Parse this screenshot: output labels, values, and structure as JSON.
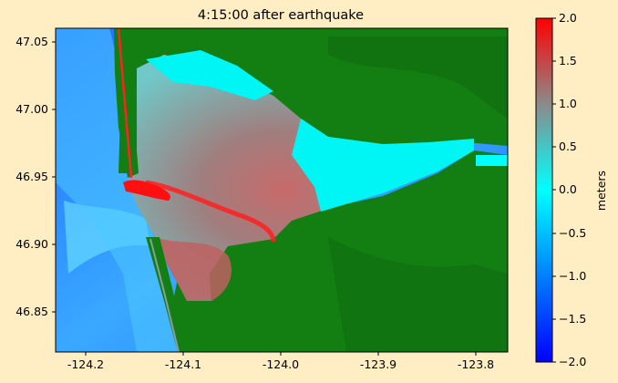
{
  "title": "4:15:00 after earthquake",
  "colors": {
    "figure_bg": "#ffedc4",
    "land_green": "#137f13",
    "water_deep": "#1a6dff",
    "water_cyan": "#00ffff",
    "water_grey": "#7f9b9b",
    "water_red": "#ff2020"
  },
  "map": {
    "lon_ticks": [
      "-124.2",
      "-124.1",
      "-124.0",
      "-123.9",
      "-123.8"
    ],
    "lat_ticks": [
      "47.05",
      "47.00",
      "46.95",
      "46.90",
      "46.85"
    ]
  },
  "colorbar": {
    "label": "meters",
    "ticks": [
      "2.0",
      "1.5",
      "1.0",
      "0.5",
      "0.0",
      "−0.5",
      "−1.0",
      "−1.5",
      "−2.0"
    ],
    "colors": [
      "#ff0000",
      "#8b8b8b",
      "#00ffff",
      "#0000ff"
    ]
  }
}
